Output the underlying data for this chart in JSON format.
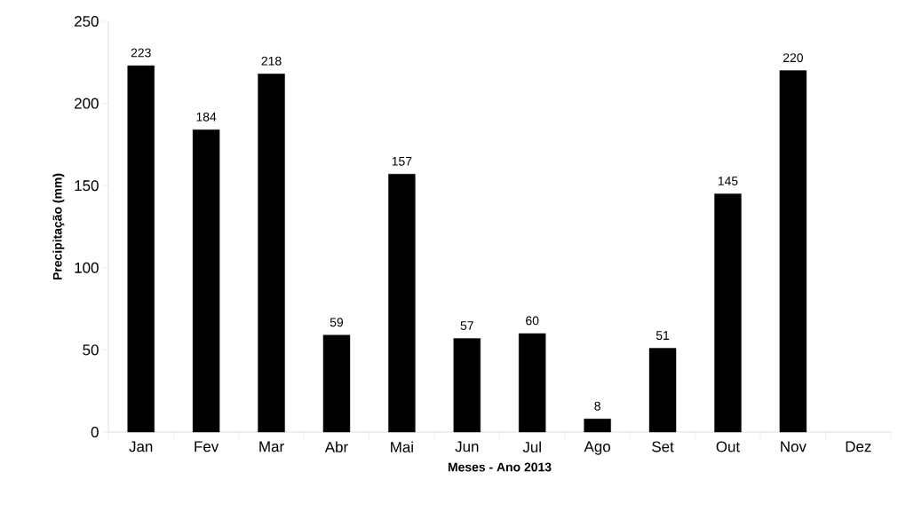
{
  "chart_data": {
    "type": "bar",
    "xlabel": "Meses - Ano 2013",
    "ylabel": "Precipitação (mm)",
    "categories": [
      "Jan",
      "Fev",
      "Mar",
      "Abr",
      "Mai",
      "Jun",
      "Jul",
      "Ago",
      "Set",
      "Out",
      "Nov",
      "Dez"
    ],
    "values": [
      223,
      184,
      218,
      59,
      157,
      57,
      60,
      8,
      51,
      145,
      220,
      null
    ],
    "color": "#000000",
    "ylim": [
      0,
      250
    ],
    "yticks": [
      0,
      50,
      100,
      150,
      200,
      250
    ],
    "data_labels": true,
    "grid": false
  }
}
